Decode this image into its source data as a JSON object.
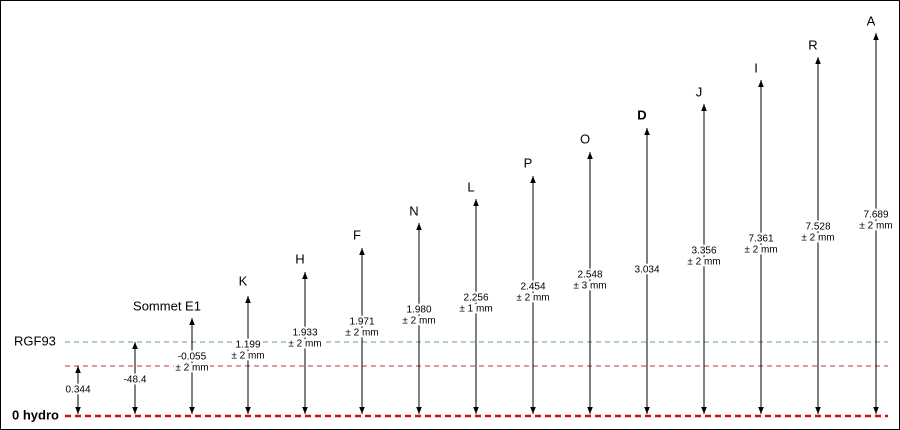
{
  "reference_lines": [
    {
      "label": "RGF93"
    },
    {
      "label": "0 hydro"
    }
  ],
  "points": [
    {
      "value": "0.344"
    },
    {
      "value": "-48.4"
    },
    {
      "label": "Sommet E1",
      "value": "-0.055",
      "tolerance": "± 2 mm"
    },
    {
      "label": "K",
      "value": "1.199",
      "tolerance": "± 2 mm"
    },
    {
      "label": "H",
      "value": "1.933",
      "tolerance": "± 2 mm"
    },
    {
      "label": "F",
      "value": "1.971",
      "tolerance": "± 2 mm"
    },
    {
      "label": "N",
      "value": "1.980",
      "tolerance": "± 2 mm"
    },
    {
      "label": "L",
      "value": "2.256",
      "tolerance": "± 1 mm"
    },
    {
      "label": "P",
      "value": "2.454",
      "tolerance": "± 2 mm"
    },
    {
      "label": "O",
      "value": "2.548",
      "tolerance": "± 3 mm"
    },
    {
      "label": "D",
      "value": "3.034"
    },
    {
      "label": "J",
      "value": "3.356",
      "tolerance": "± 2 mm"
    },
    {
      "label": "I",
      "value": "7.361",
      "tolerance": "± 2 mm"
    },
    {
      "label": "R",
      "value": "7.528",
      "tolerance": "± 2 mm"
    },
    {
      "label": "A",
      "value": "7.689",
      "tolerance": "± 2 mm"
    }
  ]
}
